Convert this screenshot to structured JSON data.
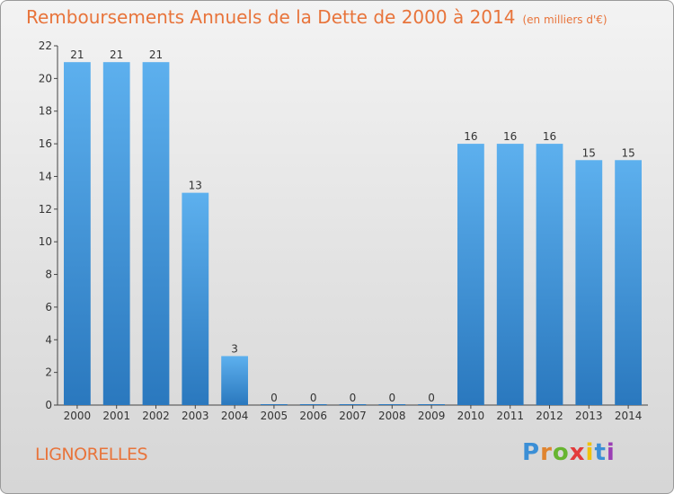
{
  "title": "Remboursements Annuels de la Dette de 2000 à 2014",
  "unit": "(en milliers d'€)",
  "commune": "LIGNORELLES",
  "brand": {
    "text": "Proxiti",
    "letters": [
      "P",
      "r",
      "o",
      "x",
      "i",
      "t",
      "i"
    ]
  },
  "colors": {
    "bar": "#4a9fe0",
    "bar_dark": "#2a78be",
    "title": "#e8743b",
    "axis": "#444444"
  },
  "chart_data": {
    "type": "bar",
    "categories": [
      "2000",
      "2001",
      "2002",
      "2003",
      "2004",
      "2005",
      "2006",
      "2007",
      "2008",
      "2009",
      "2010",
      "2011",
      "2012",
      "2013",
      "2014"
    ],
    "values": [
      21,
      21,
      21,
      13,
      3,
      0,
      0,
      0,
      0,
      0,
      16,
      16,
      16,
      15,
      15
    ],
    "ylim": [
      0,
      22
    ],
    "yticks": [
      0,
      2,
      4,
      6,
      8,
      10,
      12,
      14,
      16,
      18,
      20,
      22
    ],
    "grid": false,
    "data_labels": true
  }
}
